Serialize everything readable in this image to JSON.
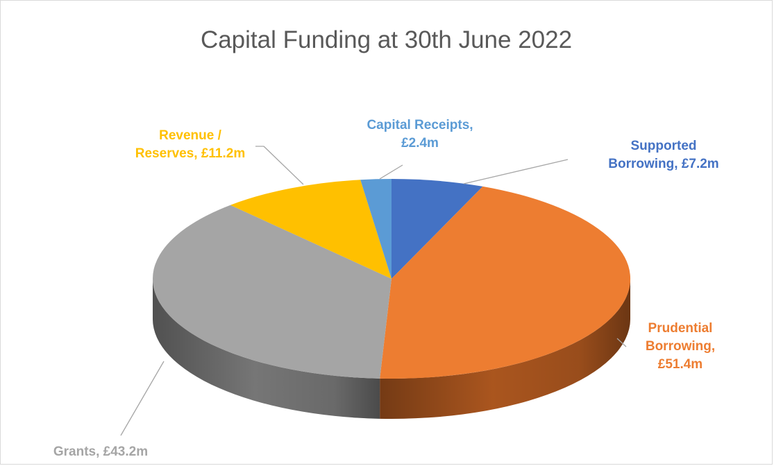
{
  "chart_data": {
    "type": "pie",
    "title": "Capital Funding at 30th June 2022",
    "three_d": true,
    "legend": "none",
    "slices": [
      {
        "name": "Supported Borrowing",
        "value": 7.2,
        "label_lines": [
          "Supported",
          "Borrowing, £7.2m"
        ],
        "color": "#4472C4",
        "side_color": "#2F528F"
      },
      {
        "name": "Prudential Borrowing",
        "value": 51.4,
        "label_lines": [
          "Prudential",
          "Borrowing,",
          "£51.4m"
        ],
        "color": "#ED7D31",
        "side_color": "#B35A20"
      },
      {
        "name": "Grants",
        "value": 43.2,
        "label_lines": [
          "Grants, £43.2m"
        ],
        "color": "#A5A5A5",
        "side_color": "#7C7C7C"
      },
      {
        "name": "Revenue / Reserves",
        "value": 11.2,
        "label_lines": [
          "Revenue /",
          "Reserves, £11.2m"
        ],
        "color": "#FFC000",
        "side_color": "#BF9000"
      },
      {
        "name": "Capital Receipts",
        "value": 2.4,
        "label_lines": [
          "Capital Receipts,",
          "£2.4m"
        ],
        "color": "#5B9BD5",
        "side_color": "#41719C"
      }
    ]
  }
}
